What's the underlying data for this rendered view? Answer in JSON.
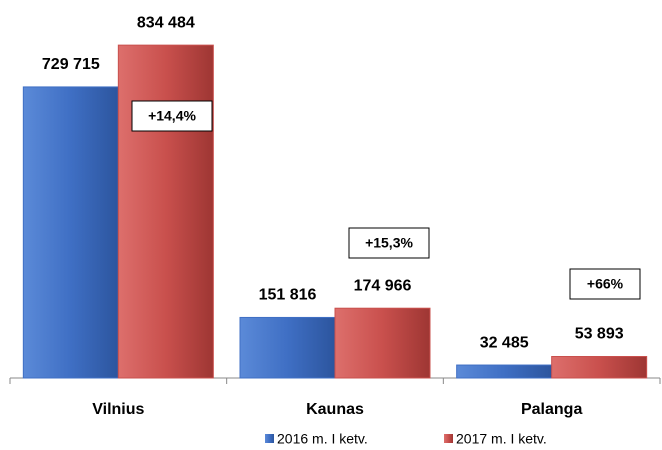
{
  "chart_data": {
    "type": "bar",
    "categories": [
      "Vilnius",
      "Kaunas",
      "Palanga"
    ],
    "series": [
      {
        "name": "2016 m. I ketv.",
        "color": "#3f6fc4",
        "values": [
          729715,
          151816,
          32485
        ],
        "value_labels": [
          "729 715",
          "151 816",
          "32 485"
        ]
      },
      {
        "name": "2017 m. I ketv.",
        "color": "#c9504d",
        "values": [
          834484,
          174966,
          53893
        ],
        "value_labels": [
          "834 484",
          "174 966",
          "53 893"
        ]
      }
    ],
    "annotations": [
      "+14,4%",
      "+15,3%",
      "+66%"
    ],
    "ylim": [
      0,
      900000
    ]
  }
}
